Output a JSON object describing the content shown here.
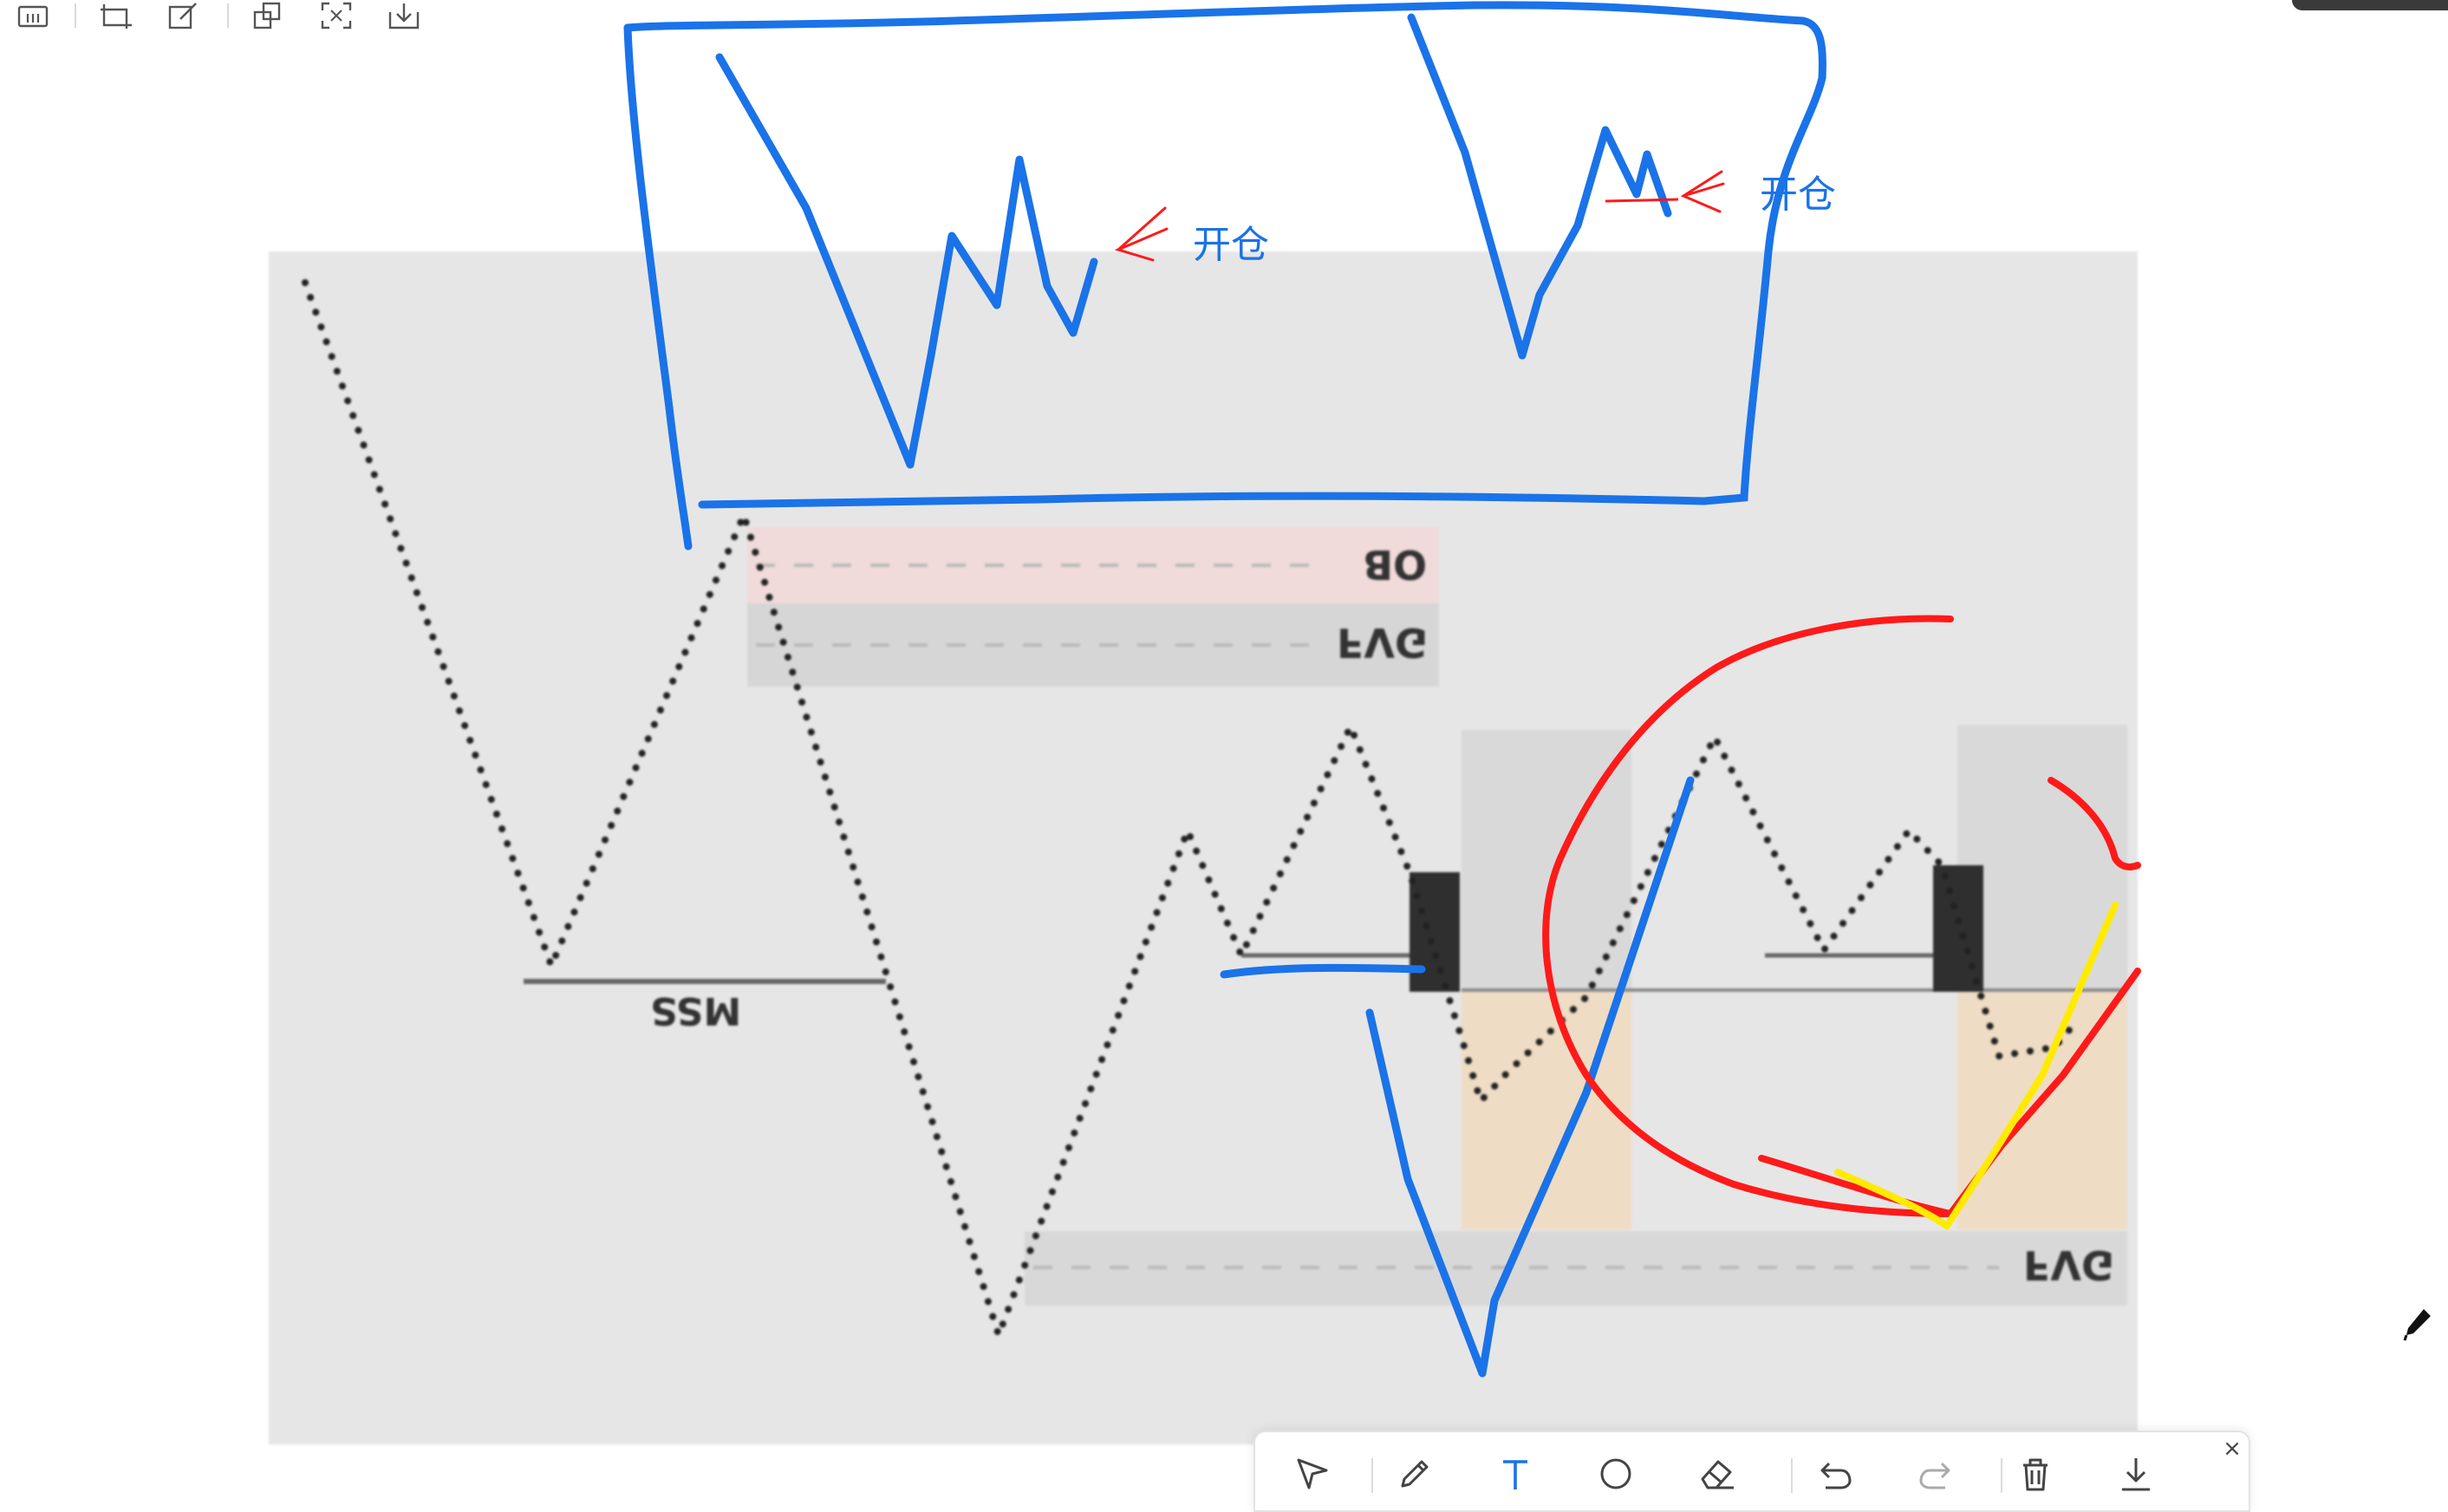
{
  "top_toolbar": {
    "icons": [
      "layout-icon",
      "crop-icon",
      "edit-icon",
      "copy-icon",
      "fullscreen-icon",
      "download-icon"
    ]
  },
  "chart_image": {
    "zone_labels": {
      "ob": "OB",
      "fvg_top": "FVG",
      "fvg_bottom": "FVG",
      "mss": "MSS"
    },
    "colors": {
      "ob_zone": "#f0dada",
      "fvg_zone": "#d6d6d6",
      "orange_zone": "#efdcc4",
      "candle": "#2f2f2f",
      "dots": "#222222"
    }
  },
  "annotations": {
    "open_label_1": "开仓",
    "open_label_2": "开仓",
    "colors": {
      "blue": "#1a73e8",
      "red": "#ff1a1a",
      "yellow": "#ffeb00"
    }
  },
  "draw_toolbar": {
    "tools": [
      "select-arrow-icon",
      "pencil-icon",
      "text-tool-icon",
      "circle-icon",
      "eraser-icon",
      "undo-icon",
      "redo-icon",
      "trash-icon",
      "download-icon"
    ],
    "active_color": "#1a73e8",
    "close": "×"
  }
}
